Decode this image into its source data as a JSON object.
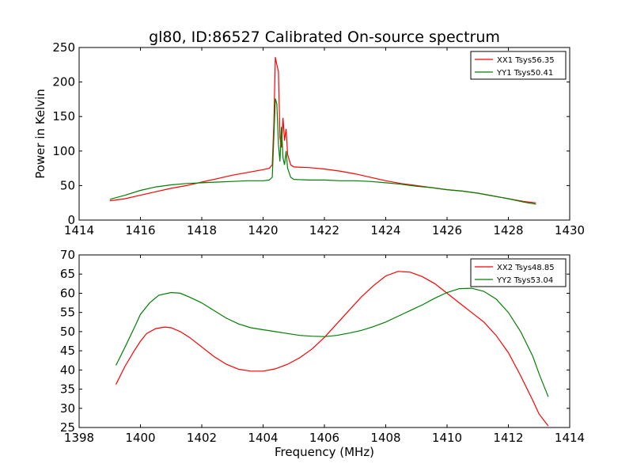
{
  "figure": {
    "title": "gl80, ID:86527 Calibrated On-source spectrum"
  },
  "colors": {
    "xx": "#ff0000",
    "yy": "#008000",
    "axes": "#000000",
    "background": "#ffffff"
  },
  "chart_data": [
    {
      "type": "line",
      "title": "gl80, ID:86527 Calibrated On-source spectrum",
      "xlabel": "",
      "ylabel": "Power in Kelvin",
      "xlim": [
        1414,
        1430
      ],
      "ylim": [
        0,
        250
      ],
      "xticks": [
        1414,
        1416,
        1418,
        1420,
        1422,
        1424,
        1426,
        1428,
        1430
      ],
      "yticks": [
        0,
        50,
        100,
        150,
        200,
        250
      ],
      "grid": false,
      "legend_position": "top-right",
      "series": [
        {
          "name": "XX1 Tsys56.35",
          "color": "#ff0000",
          "points": [
            [
              1415.0,
              28
            ],
            [
              1415.5,
              31
            ],
            [
              1416.0,
              36
            ],
            [
              1416.5,
              41
            ],
            [
              1417.0,
              46
            ],
            [
              1417.5,
              50
            ],
            [
              1418.0,
              55
            ],
            [
              1418.5,
              60
            ],
            [
              1419.0,
              65
            ],
            [
              1419.5,
              69
            ],
            [
              1420.0,
              73
            ],
            [
              1420.2,
              75
            ],
            [
              1420.3,
              80
            ],
            [
              1420.35,
              140
            ],
            [
              1420.4,
              236
            ],
            [
              1420.45,
              225
            ],
            [
              1420.5,
              215
            ],
            [
              1420.55,
              120
            ],
            [
              1420.6,
              105
            ],
            [
              1420.65,
              148
            ],
            [
              1420.7,
              115
            ],
            [
              1420.75,
              132
            ],
            [
              1420.8,
              95
            ],
            [
              1420.9,
              80
            ],
            [
              1421.0,
              77
            ],
            [
              1421.5,
              76
            ],
            [
              1422.0,
              74
            ],
            [
              1422.5,
              71
            ],
            [
              1423.0,
              67
            ],
            [
              1423.5,
              62
            ],
            [
              1424.0,
              57
            ],
            [
              1424.5,
              53
            ],
            [
              1425.0,
              50
            ],
            [
              1425.5,
              47
            ],
            [
              1426.0,
              44
            ],
            [
              1426.5,
              42
            ],
            [
              1427.0,
              39
            ],
            [
              1427.5,
              35
            ],
            [
              1428.0,
              31
            ],
            [
              1428.5,
              27
            ],
            [
              1428.9,
              25
            ]
          ]
        },
        {
          "name": "YY1 Tsys50.41",
          "color": "#008000",
          "points": [
            [
              1415.0,
              30
            ],
            [
              1415.5,
              36
            ],
            [
              1416.0,
              43
            ],
            [
              1416.5,
              48
            ],
            [
              1417.0,
              51
            ],
            [
              1417.5,
              53
            ],
            [
              1418.0,
              54
            ],
            [
              1418.5,
              55
            ],
            [
              1419.0,
              56
            ],
            [
              1419.5,
              57
            ],
            [
              1420.0,
              57
            ],
            [
              1420.2,
              58
            ],
            [
              1420.3,
              62
            ],
            [
              1420.35,
              120
            ],
            [
              1420.4,
              176
            ],
            [
              1420.45,
              168
            ],
            [
              1420.5,
              110
            ],
            [
              1420.55,
              85
            ],
            [
              1420.6,
              135
            ],
            [
              1420.65,
              90
            ],
            [
              1420.7,
              80
            ],
            [
              1420.75,
              100
            ],
            [
              1420.8,
              75
            ],
            [
              1420.9,
              62
            ],
            [
              1421.0,
              59
            ],
            [
              1421.5,
              58
            ],
            [
              1422.0,
              58
            ],
            [
              1422.5,
              57
            ],
            [
              1423.0,
              57
            ],
            [
              1423.5,
              56
            ],
            [
              1424.0,
              54
            ],
            [
              1424.5,
              52
            ],
            [
              1425.0,
              49
            ],
            [
              1425.5,
              47
            ],
            [
              1426.0,
              44
            ],
            [
              1426.5,
              42
            ],
            [
              1427.0,
              39
            ],
            [
              1427.5,
              35
            ],
            [
              1428.0,
              31
            ],
            [
              1428.5,
              26
            ],
            [
              1428.9,
              23
            ]
          ]
        }
      ]
    },
    {
      "type": "line",
      "title": "",
      "xlabel": "Frequency (MHz)",
      "ylabel": "",
      "xlim": [
        1398,
        1414
      ],
      "ylim": [
        25,
        70
      ],
      "xticks": [
        1398,
        1400,
        1402,
        1404,
        1406,
        1408,
        1410,
        1412,
        1414
      ],
      "yticks": [
        25,
        30,
        35,
        40,
        45,
        50,
        55,
        60,
        65,
        70
      ],
      "grid": false,
      "legend_position": "top-right",
      "series": [
        {
          "name": "XX2 Tsys48.85",
          "color": "#ff0000",
          "points": [
            [
              1399.2,
              36.2
            ],
            [
              1399.5,
              41
            ],
            [
              1399.8,
              45
            ],
            [
              1400.0,
              47.5
            ],
            [
              1400.2,
              49.5
            ],
            [
              1400.5,
              50.8
            ],
            [
              1400.8,
              51.2
            ],
            [
              1401.0,
              51
            ],
            [
              1401.3,
              50
            ],
            [
              1401.6,
              48.5
            ],
            [
              1402.0,
              46
            ],
            [
              1402.4,
              43.5
            ],
            [
              1402.8,
              41.5
            ],
            [
              1403.2,
              40.2
            ],
            [
              1403.6,
              39.7
            ],
            [
              1404.0,
              39.7
            ],
            [
              1404.4,
              40.3
            ],
            [
              1404.8,
              41.5
            ],
            [
              1405.2,
              43.2
            ],
            [
              1405.6,
              45.5
            ],
            [
              1406.0,
              48.5
            ],
            [
              1406.4,
              52
            ],
            [
              1406.8,
              55.5
            ],
            [
              1407.2,
              59
            ],
            [
              1407.6,
              62
            ],
            [
              1408.0,
              64.5
            ],
            [
              1408.4,
              65.7
            ],
            [
              1408.8,
              65.5
            ],
            [
              1409.2,
              64.3
            ],
            [
              1409.6,
              62.5
            ],
            [
              1410.0,
              60
            ],
            [
              1410.4,
              57.5
            ],
            [
              1410.8,
              55
            ],
            [
              1411.2,
              52.5
            ],
            [
              1411.6,
              49
            ],
            [
              1412.0,
              44.5
            ],
            [
              1412.4,
              38.5
            ],
            [
              1412.8,
              32
            ],
            [
              1413.0,
              28.5
            ],
            [
              1413.3,
              25.4
            ]
          ]
        },
        {
          "name": "YY2 Tsys53.04",
          "color": "#008000",
          "points": [
            [
              1399.2,
              41.2
            ],
            [
              1399.5,
              46
            ],
            [
              1399.8,
              51
            ],
            [
              1400.0,
              54.5
            ],
            [
              1400.3,
              57.5
            ],
            [
              1400.6,
              59.5
            ],
            [
              1401.0,
              60.2
            ],
            [
              1401.3,
              60
            ],
            [
              1401.6,
              59
            ],
            [
              1402.0,
              57.5
            ],
            [
              1402.4,
              55.5
            ],
            [
              1402.8,
              53.5
            ],
            [
              1403.2,
              52
            ],
            [
              1403.6,
              51
            ],
            [
              1404.0,
              50.5
            ],
            [
              1404.4,
              50
            ],
            [
              1404.8,
              49.5
            ],
            [
              1405.2,
              49
            ],
            [
              1405.6,
              48.8
            ],
            [
              1406.0,
              48.7
            ],
            [
              1406.4,
              49
            ],
            [
              1406.8,
              49.6
            ],
            [
              1407.2,
              50.3
            ],
            [
              1407.6,
              51.3
            ],
            [
              1408.0,
              52.5
            ],
            [
              1408.4,
              54
            ],
            [
              1408.8,
              55.5
            ],
            [
              1409.2,
              57
            ],
            [
              1409.6,
              58.7
            ],
            [
              1410.0,
              60.2
            ],
            [
              1410.4,
              61.2
            ],
            [
              1410.8,
              61.3
            ],
            [
              1411.2,
              60.5
            ],
            [
              1411.6,
              58.5
            ],
            [
              1412.0,
              55
            ],
            [
              1412.4,
              50
            ],
            [
              1412.8,
              43.5
            ],
            [
              1413.0,
              39
            ],
            [
              1413.3,
              33
            ]
          ]
        }
      ]
    }
  ]
}
